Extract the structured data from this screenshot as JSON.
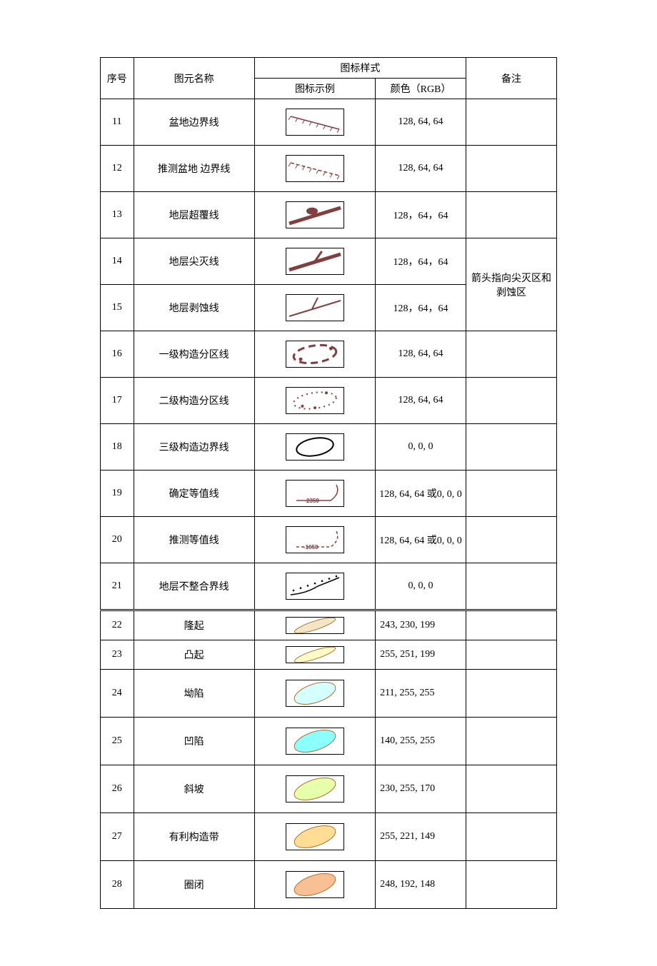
{
  "headers": {
    "seq": "序号",
    "name": "图元名称",
    "style_group": "图标样式",
    "example": "图标示例",
    "color": "颜色（RGB）",
    "note": "备注"
  },
  "brown": "#804040",
  "black": "#000000",
  "rows": [
    {
      "id": 11,
      "name": "盆地边界线",
      "icon": "hatch-solid",
      "color_text": "128, 64, 64",
      "note": "",
      "h": "row1"
    },
    {
      "id": 12,
      "name": "推测盆地 边界线",
      "icon": "hatch-dashed",
      "color_text": "128, 64, 64",
      "note": "",
      "h": "row1"
    },
    {
      "id": 13,
      "name": "地层超覆线",
      "icon": "overlap",
      "color_text": "128，64，64",
      "note": "",
      "h": "row1"
    },
    {
      "id": 14,
      "name": "地层尖灭线",
      "icon": "pinchout",
      "color_text": "128，64，64",
      "note_start": "箭头指向尖灭区和剥蚀区",
      "note_span": 2,
      "h": "row1"
    },
    {
      "id": 15,
      "name": "地层剥蚀线",
      "icon": "erosion",
      "color_text": "128，64，64",
      "h": "row1"
    },
    {
      "id": 16,
      "name": "一级构造分区线",
      "icon": "dash-oval-hvy",
      "color_text": "128, 64, 64",
      "note": "",
      "h": "row1"
    },
    {
      "id": 17,
      "name": "二级构造分区线",
      "icon": "dot-oval",
      "color_text": "128, 64, 64",
      "note": "",
      "h": "row1"
    },
    {
      "id": 18,
      "name": "三级构造边界线",
      "icon": "ellipse-black",
      "color_text": "0, 0, 0",
      "note": "",
      "h": "row1"
    },
    {
      "id": 19,
      "name": "确定等值线",
      "icon": "contour-solid",
      "color_text": "128, 64, 64 或0, 0, 0",
      "note": "",
      "h": "row1"
    },
    {
      "id": 20,
      "name": "推测等值线",
      "icon": "contour-dash",
      "color_text": "128, 64, 64 或0, 0, 0",
      "note": "",
      "h": "row1"
    },
    {
      "id": 21,
      "name": "地层不整合界线",
      "icon": "unconformity",
      "color_text": "0, 0, 0",
      "note": "",
      "h": "row1",
      "last_of_part1": true
    }
  ],
  "rows2": [
    {
      "id": 22,
      "name": "隆起",
      "fill": "rgb(243,230,199)",
      "color_text": "243, 230, 199",
      "h": "row-s"
    },
    {
      "id": 23,
      "name": "凸起",
      "fill": "rgb(255,251,199)",
      "color_text": "255, 251, 199",
      "h": "row-s"
    },
    {
      "id": 24,
      "name": "坳陷",
      "fill": "rgb(211,255,255)",
      "color_text": "211, 255, 255",
      "h": "row-l"
    },
    {
      "id": 25,
      "name": "凹陷",
      "fill": "rgb(140,255,255)",
      "color_text": "140, 255, 255",
      "h": "row-l"
    },
    {
      "id": 26,
      "name": "斜坡",
      "fill": "rgb(230,255,170)",
      "color_text": "230, 255, 170",
      "h": "row-l"
    },
    {
      "id": 27,
      "name": "有利构造带",
      "fill": "rgb(255,221,149)",
      "color_text": "255, 221, 149",
      "h": "row-l"
    },
    {
      "id": 28,
      "name": "圈闭",
      "fill": "rgb(248,192,148)",
      "color_text": "248, 192, 148",
      "h": "row-l"
    }
  ],
  "contour_labels": {
    "solid": "2350",
    "dash": "-1650"
  },
  "svg_sizes": {
    "line_w": 80,
    "line_h": 36,
    "fill_w": 80,
    "fill_h": 36,
    "small_h": 22
  }
}
